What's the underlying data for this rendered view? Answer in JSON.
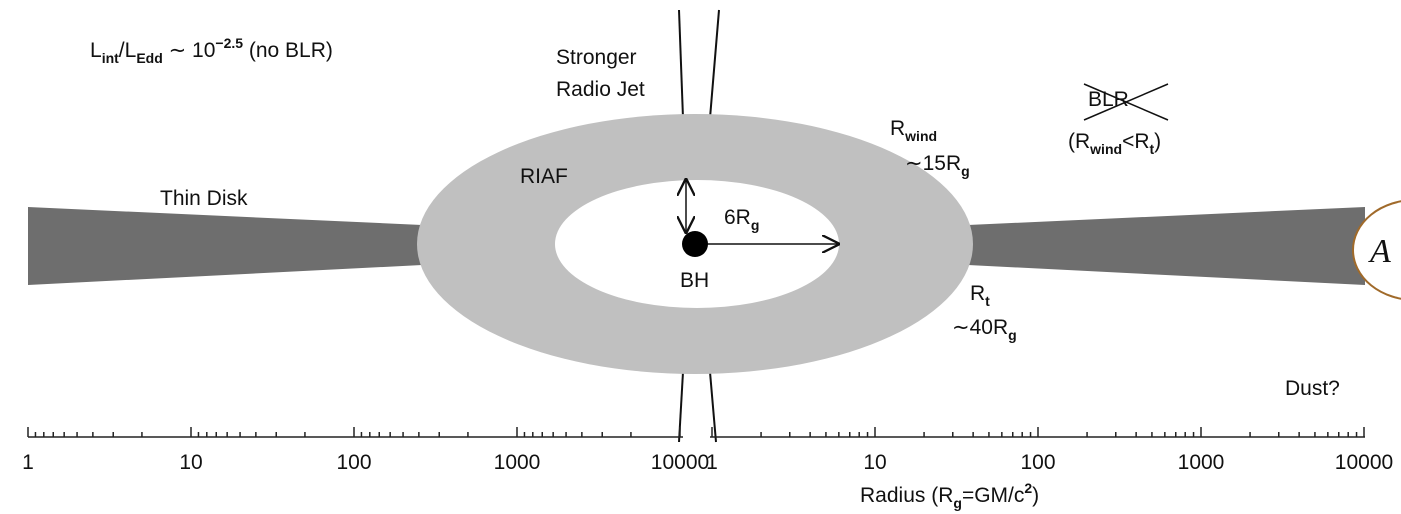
{
  "title": {
    "parts": [
      "L",
      "int",
      "/L",
      "Edd",
      " ∼ 10",
      "−2.5",
      " (no BLR)"
    ]
  },
  "labels": {
    "jet": [
      "Stronger",
      "Radio Jet"
    ],
    "riaf": "RIAF",
    "thin_disk": "Thin Disk",
    "inner_radius": {
      "parts": [
        "6R",
        "g"
      ]
    },
    "bh": "BH",
    "r_wind": {
      "parts": [
        "R",
        "wind"
      ]
    },
    "r_wind_value": {
      "parts": [
        "∼15R",
        "g"
      ]
    },
    "blr": "BLR",
    "blr_condition": {
      "parts": [
        "(R",
        "wind",
        "<R",
        "t",
        ")"
      ]
    },
    "r_t": {
      "parts": [
        "R",
        "t"
      ]
    },
    "r_t_value": {
      "parts": [
        "∼40R",
        "g"
      ]
    },
    "dust": "Dust?",
    "corner_letter": "A"
  },
  "axis": {
    "left_ticks": [
      "10000",
      "1000",
      "100",
      "10",
      "1"
    ],
    "right_ticks": [
      "1",
      "10",
      "100",
      "1000",
      "10000"
    ],
    "label": {
      "parts": [
        "Radius (R",
        "g",
        "=GM/c",
        "2",
        ")"
      ]
    }
  }
}
